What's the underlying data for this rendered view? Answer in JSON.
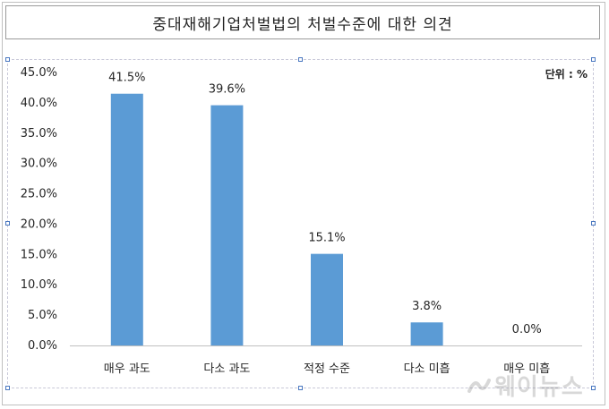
{
  "title": "중대재해기업처벌법의 처벌수준에 대한 의견",
  "unit_label": "단위 : %",
  "watermark": {
    "logo": "웨이뉴스"
  },
  "colors": {
    "bar": "#5b9bd5",
    "axis": "#bfbfbf",
    "text": "#262626"
  },
  "chart_data": {
    "type": "bar",
    "title": "중대재해기업처벌법의 처벌수준에 대한 의견",
    "xlabel": "",
    "ylabel": "",
    "categories": [
      "매우 과도",
      "다소 과도",
      "적정 수준",
      "다소 미흡",
      "매우 미흡"
    ],
    "values": [
      41.5,
      39.6,
      15.1,
      3.8,
      0.0
    ],
    "value_labels": [
      "41.5%",
      "39.6%",
      "15.1%",
      "3.8%",
      "0.0%"
    ],
    "ylim": [
      0,
      45
    ],
    "yticks": [
      0,
      5,
      10,
      15,
      20,
      25,
      30,
      35,
      40,
      45
    ],
    "ytick_labels": [
      "0.0%",
      "5.0%",
      "10.0%",
      "15.0%",
      "20.0%",
      "25.0%",
      "30.0%",
      "35.0%",
      "40.0%",
      "45.0%"
    ],
    "grid": false,
    "legend": "none"
  }
}
